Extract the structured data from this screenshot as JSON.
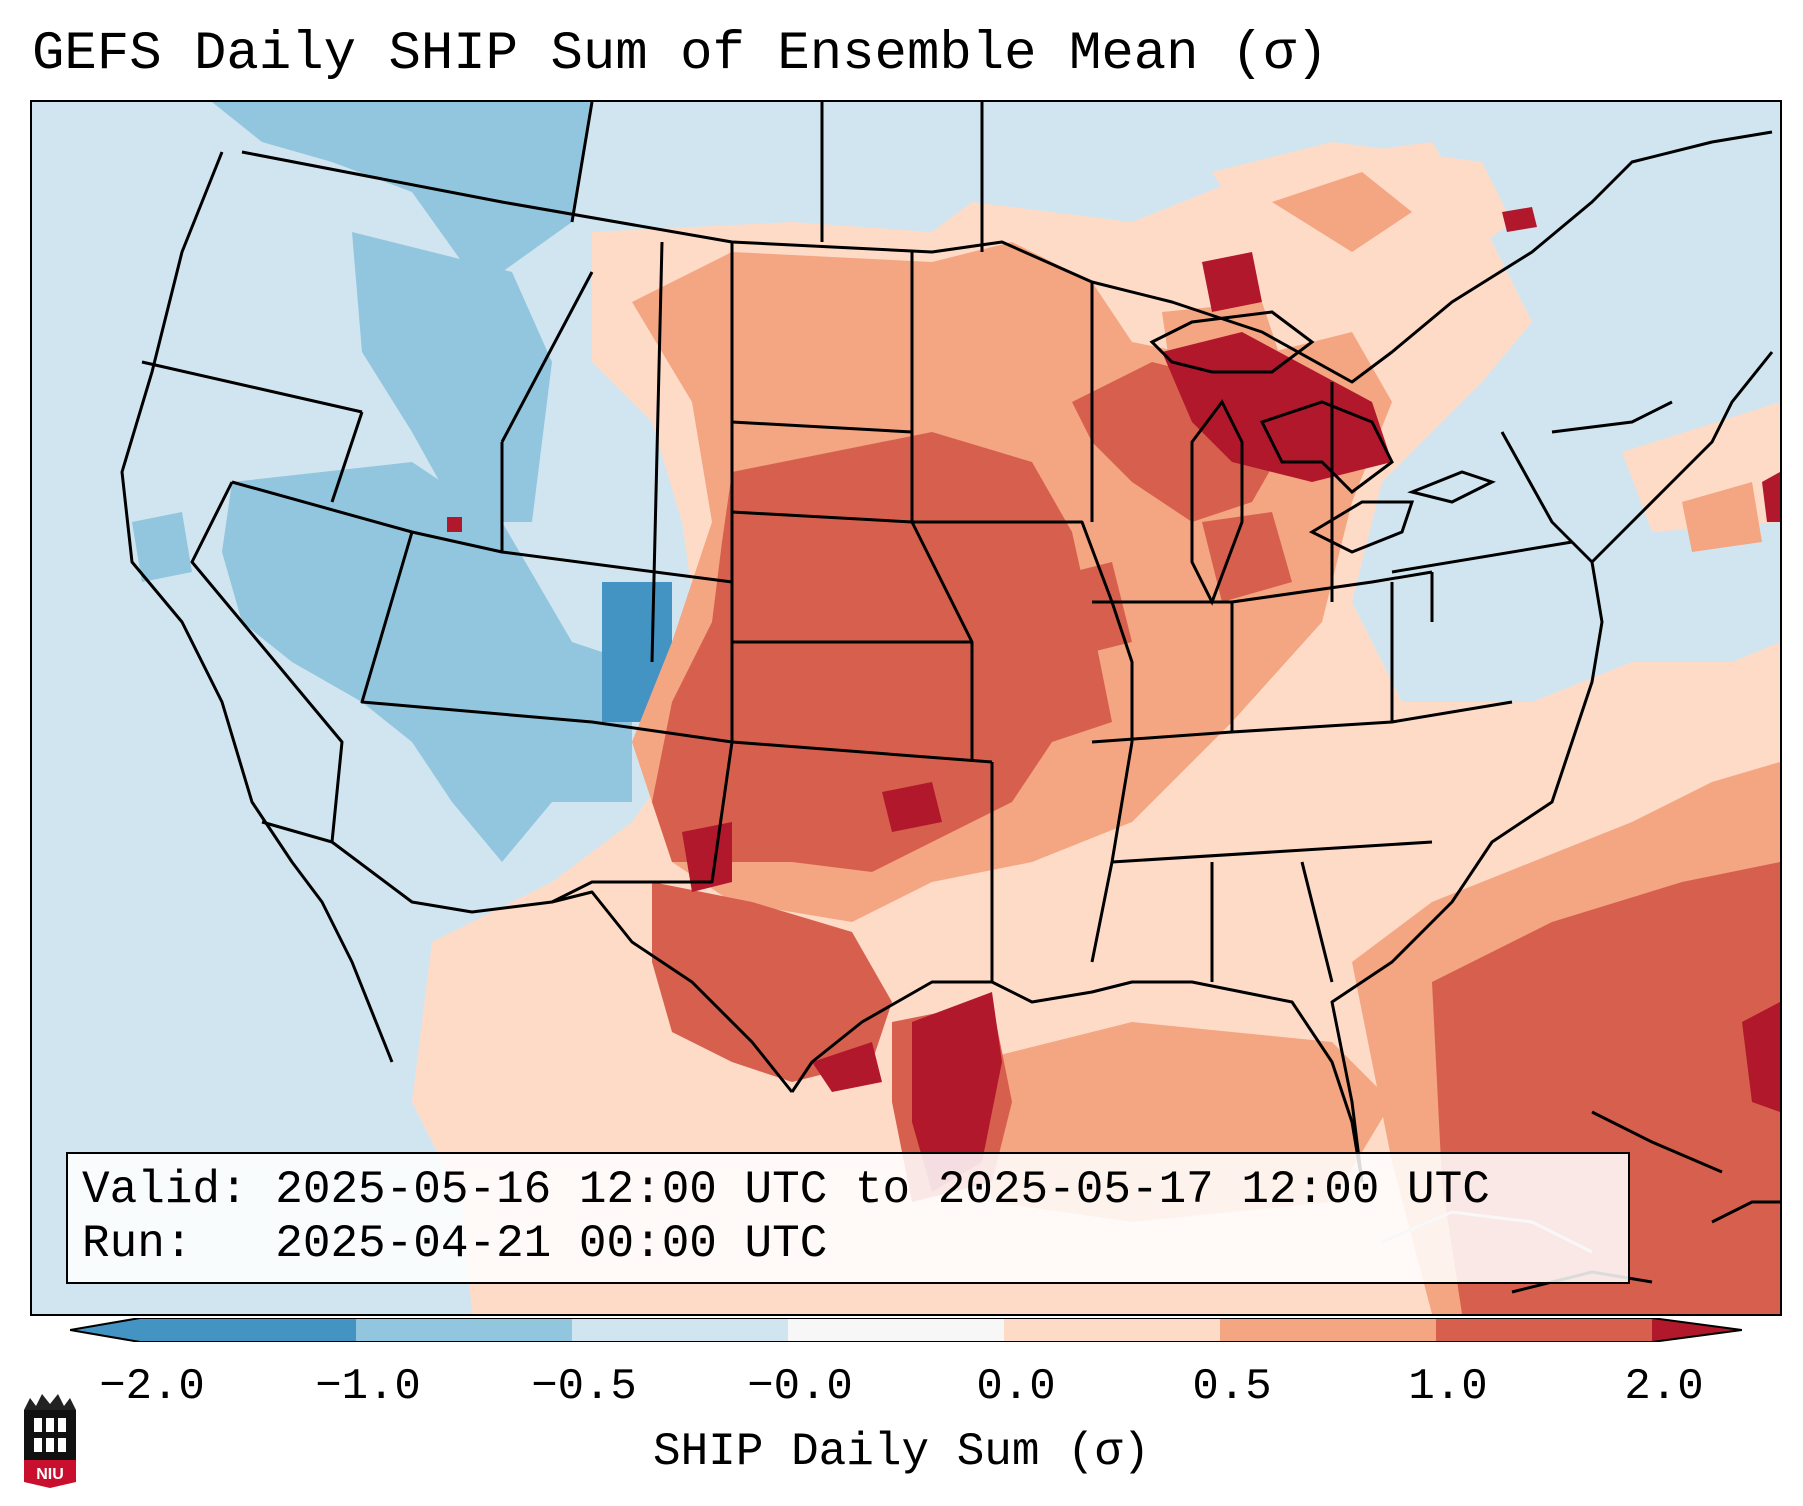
{
  "title": "GEFS Daily SHIP Sum of Ensemble Mean (σ)",
  "info": {
    "valid_line": "Valid: 2025-05-16 12:00 UTC to 2025-05-17 12:00 UTC",
    "run_line": "Run:   2025-04-21 00:00 UTC"
  },
  "colorbar": {
    "ticks": [
      "−2.0",
      "−1.0",
      "−0.5",
      "−0.0",
      "0.0",
      "0.5",
      "1.0",
      "2.0"
    ],
    "label": "SHIP Daily Sum (σ)",
    "colors": [
      "#4393c3",
      "#92c5de",
      "#d1e5f0",
      "#f7f7f7",
      "#fddbc7",
      "#f4a582",
      "#d6604d",
      "#b2182b"
    ]
  },
  "map": {
    "ocean_color": "#d1e5f0",
    "boundary_color": "#000000"
  },
  "logo": {
    "name": "niu-logo",
    "text": "NIU"
  }
}
